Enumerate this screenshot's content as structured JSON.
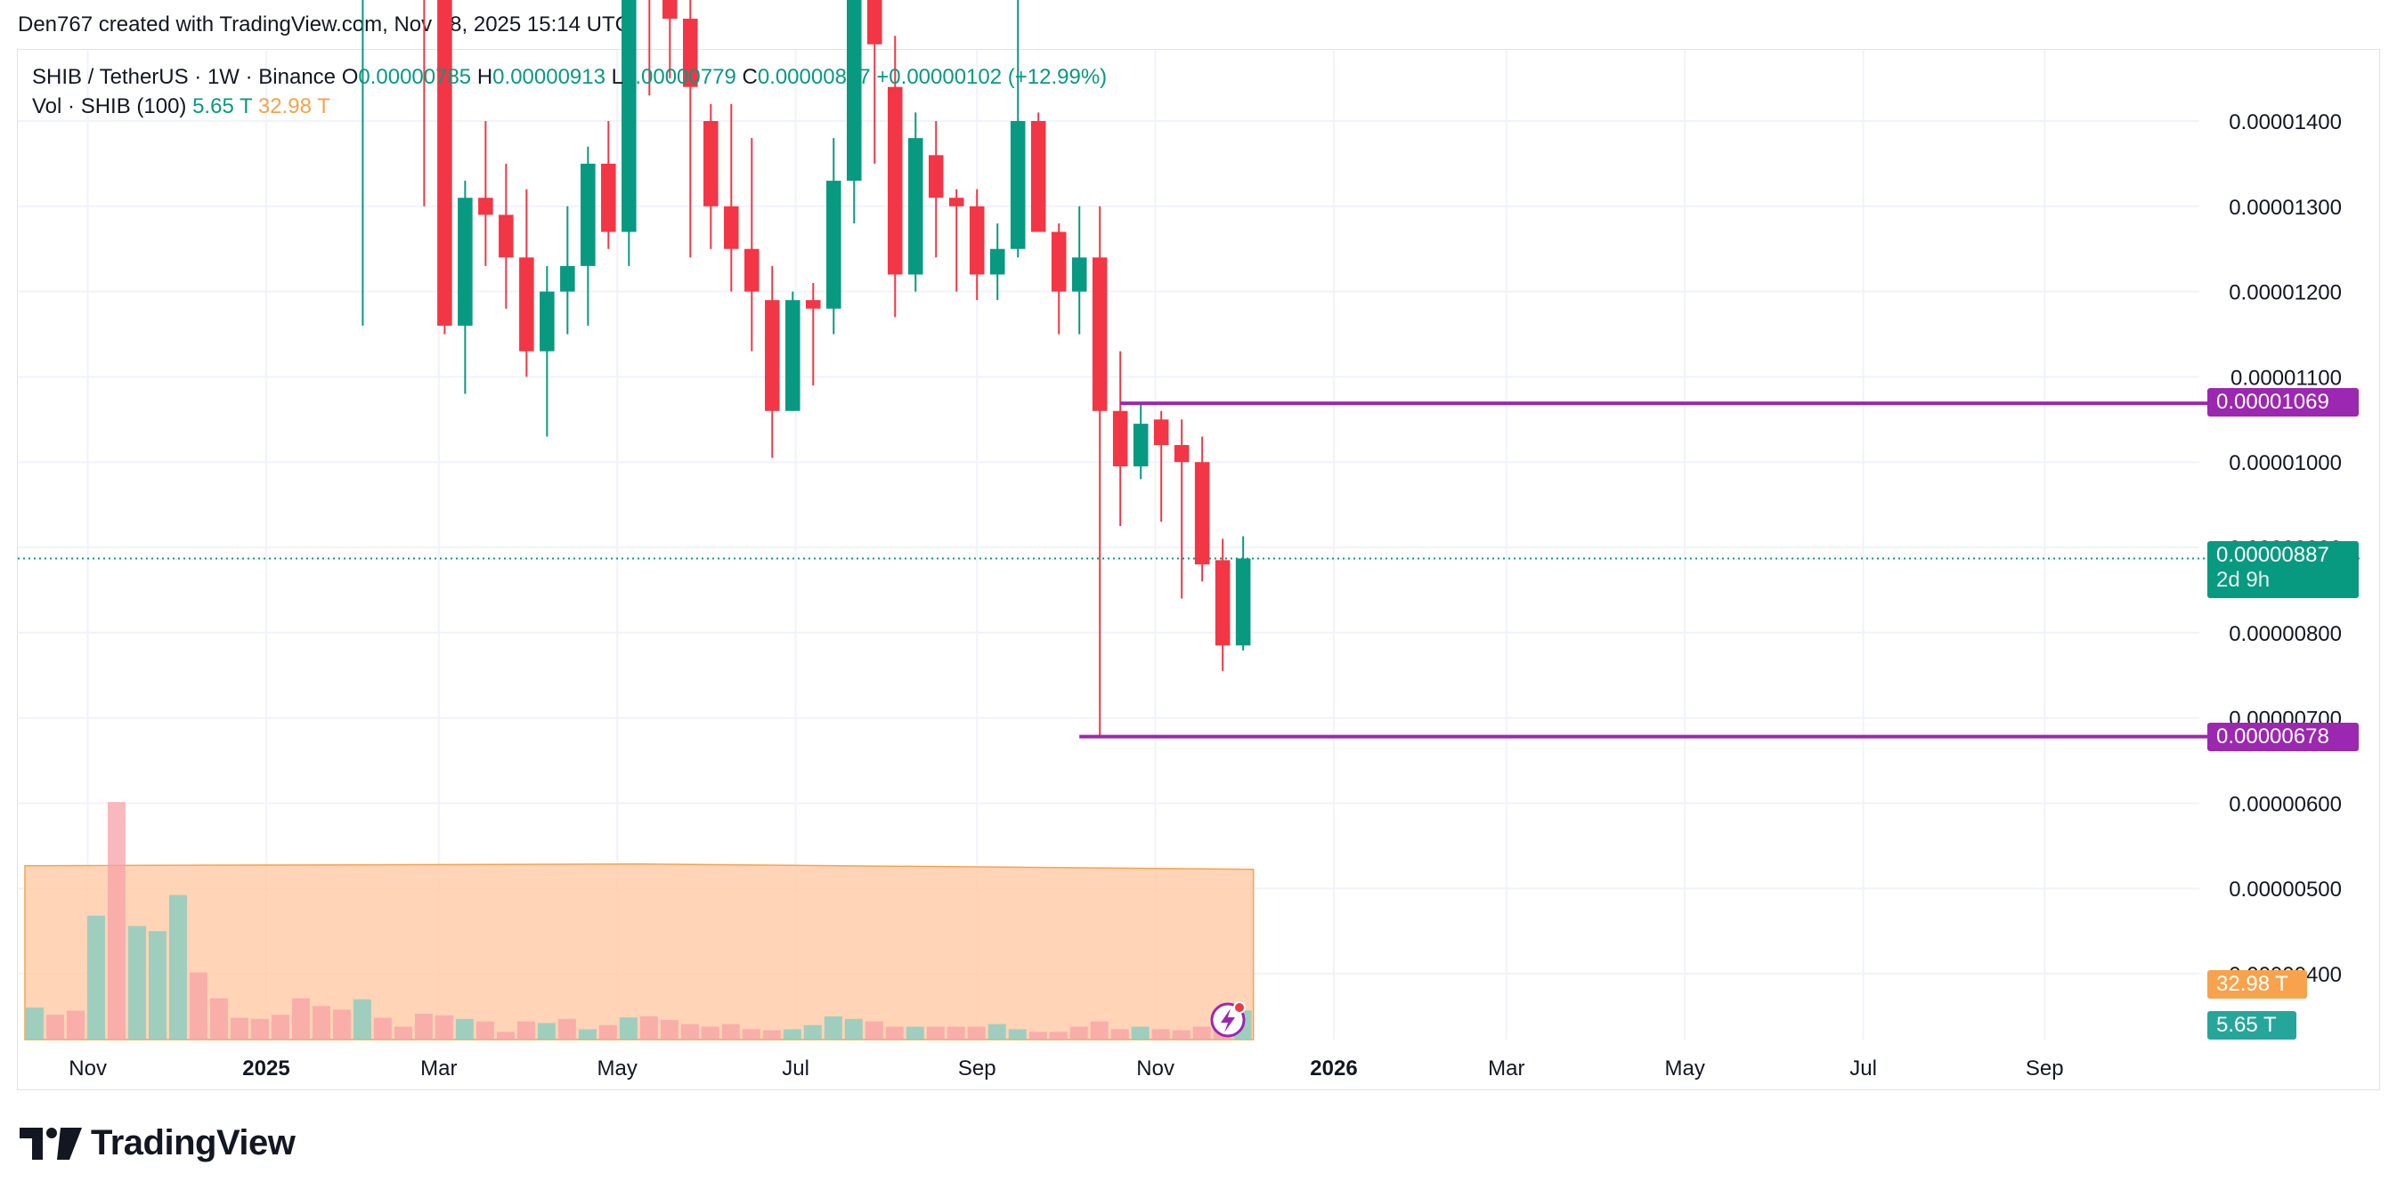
{
  "caption": "Den767 created with TradingView.com, Nov 28, 2025 15:14 UTC",
  "legend": {
    "symbol_line": "SHIB / TetherUS · 1W · Binance",
    "open_label": "O",
    "open_value": "0.00000785",
    "high_label": "H",
    "high_value": "0.00000913",
    "low_label": "L",
    "low_value": "0.00000779",
    "close_label": "C",
    "close_value": "0.00000887",
    "change": "+0.00000102 (+12.99%)",
    "volume_label": "Vol · SHIB (100)",
    "volume_value": "5.65 T",
    "volume_ma_value": "32.98 T"
  },
  "price_tags": {
    "upper_level": "0.00001069",
    "lower_level": "0.00000678",
    "last_price": "0.00000887",
    "countdown": "2d 9h",
    "volume_ma": "32.98 T",
    "volume": "5.65 T"
  },
  "colors": {
    "up": "#089981",
    "down": "#f23645",
    "level_line": "#9c27b0",
    "volume_ma_fill": "#ffccaa",
    "grid": "#f0f3fa"
  },
  "brand": {
    "name": "TradingView",
    "icon": "tradingview-logo-icon"
  },
  "chart_data": {
    "type": "candlestick",
    "timeframe": "1W",
    "y_scale": "linear",
    "y_ticks": [
      "0.00001400",
      "0.00001300",
      "0.00001200",
      "0.00001100",
      "0.00001000",
      "0.00000900",
      "0.00000800",
      "0.00000700",
      "0.00000600",
      "0.00000500",
      "0.00000400"
    ],
    "x_ticks": [
      "Nov",
      "2025",
      "Mar",
      "May",
      "Jul",
      "Sep",
      "Nov",
      "2026",
      "Mar",
      "May",
      "Jul",
      "Sep"
    ],
    "x_tick_dates": [
      "2024-11-01",
      "2025-01-01",
      "2025-03-01",
      "2025-05-01",
      "2025-07-01",
      "2025-09-01",
      "2025-11-01",
      "2026-01-01",
      "2026-03-01",
      "2026-05-01",
      "2026-07-01",
      "2026-09-01"
    ],
    "horizontal_levels": [
      {
        "value": 1.069e-05,
        "start": "2025-10-20"
      },
      {
        "value": 6.78e-06,
        "start": "2025-10-06"
      }
    ],
    "last_price": 8.87e-06,
    "candles": [
      {
        "date": "2025-02-03",
        "open": 1.62e-05,
        "high": 1.72e-05,
        "low": 1.16e-05,
        "close": 1.64e-05
      },
      {
        "date": "2025-02-24",
        "open": 1.6e-05,
        "high": 1.65e-05,
        "low": 1.3e-05,
        "close": 1.57e-05
      },
      {
        "date": "2025-03-03",
        "open": 1.6e-05,
        "high": 1.65e-05,
        "low": 1.15e-05,
        "close": 1.16e-05
      },
      {
        "date": "2025-03-10",
        "open": 1.16e-05,
        "high": 1.33e-05,
        "low": 1.08e-05,
        "close": 1.31e-05
      },
      {
        "date": "2025-03-17",
        "open": 1.31e-05,
        "high": 1.4e-05,
        "low": 1.23e-05,
        "close": 1.29e-05
      },
      {
        "date": "2025-03-24",
        "open": 1.29e-05,
        "high": 1.35e-05,
        "low": 1.18e-05,
        "close": 1.24e-05
      },
      {
        "date": "2025-03-31",
        "open": 1.24e-05,
        "high": 1.32e-05,
        "low": 1.1e-05,
        "close": 1.13e-05
      },
      {
        "date": "2025-04-07",
        "open": 1.13e-05,
        "high": 1.23e-05,
        "low": 1.03e-05,
        "close": 1.2e-05
      },
      {
        "date": "2025-04-14",
        "open": 1.2e-05,
        "high": 1.3e-05,
        "low": 1.15e-05,
        "close": 1.23e-05
      },
      {
        "date": "2025-04-21",
        "open": 1.23e-05,
        "high": 1.37e-05,
        "low": 1.16e-05,
        "close": 1.35e-05
      },
      {
        "date": "2025-04-28",
        "open": 1.35e-05,
        "high": 1.4e-05,
        "low": 1.25e-05,
        "close": 1.27e-05
      },
      {
        "date": "2025-05-05",
        "open": 1.27e-05,
        "high": 1.65e-05,
        "low": 1.23e-05,
        "close": 1.6e-05
      },
      {
        "date": "2025-05-12",
        "open": 1.6e-05,
        "high": 1.7e-05,
        "low": 1.43e-05,
        "close": 1.56e-05
      },
      {
        "date": "2025-05-19",
        "open": 1.56e-05,
        "high": 1.62e-05,
        "low": 1.45e-05,
        "close": 1.52e-05
      },
      {
        "date": "2025-05-26",
        "open": 1.52e-05,
        "high": 1.6e-05,
        "low": 1.24e-05,
        "close": 1.44e-05
      },
      {
        "date": "2025-06-02",
        "open": 1.4e-05,
        "high": 1.42e-05,
        "low": 1.25e-05,
        "close": 1.3e-05
      },
      {
        "date": "2025-06-09",
        "open": 1.3e-05,
        "high": 1.42e-05,
        "low": 1.2e-05,
        "close": 1.25e-05
      },
      {
        "date": "2025-06-16",
        "open": 1.25e-05,
        "high": 1.38e-05,
        "low": 1.13e-05,
        "close": 1.2e-05
      },
      {
        "date": "2025-06-23",
        "open": 1.19e-05,
        "high": 1.23e-05,
        "low": 1.005e-05,
        "close": 1.06e-05
      },
      {
        "date": "2025-06-30",
        "open": 1.06e-05,
        "high": 1.2e-05,
        "low": 1.06e-05,
        "close": 1.19e-05
      },
      {
        "date": "2025-07-07",
        "open": 1.19e-05,
        "high": 1.21e-05,
        "low": 1.09e-05,
        "close": 1.18e-05
      },
      {
        "date": "2025-07-14",
        "open": 1.18e-05,
        "high": 1.38e-05,
        "low": 1.15e-05,
        "close": 1.33e-05
      },
      {
        "date": "2025-07-21",
        "open": 1.33e-05,
        "high": 1.6e-05,
        "low": 1.28e-05,
        "close": 1.57e-05
      },
      {
        "date": "2025-07-28",
        "open": 1.57e-05,
        "high": 1.62e-05,
        "low": 1.35e-05,
        "close": 1.49e-05
      },
      {
        "date": "2025-08-04",
        "open": 1.44e-05,
        "high": 1.5e-05,
        "low": 1.17e-05,
        "close": 1.22e-05
      },
      {
        "date": "2025-08-11",
        "open": 1.22e-05,
        "high": 1.41e-05,
        "low": 1.2e-05,
        "close": 1.38e-05
      },
      {
        "date": "2025-08-18",
        "open": 1.36e-05,
        "high": 1.4e-05,
        "low": 1.24e-05,
        "close": 1.31e-05
      },
      {
        "date": "2025-08-25",
        "open": 1.31e-05,
        "high": 1.32e-05,
        "low": 1.2e-05,
        "close": 1.3e-05
      },
      {
        "date": "2025-09-01",
        "open": 1.3e-05,
        "high": 1.32e-05,
        "low": 1.19e-05,
        "close": 1.22e-05
      },
      {
        "date": "2025-09-08",
        "open": 1.22e-05,
        "high": 1.28e-05,
        "low": 1.19e-05,
        "close": 1.25e-05
      },
      {
        "date": "2025-09-15",
        "open": 1.25e-05,
        "high": 1.6e-05,
        "low": 1.24e-05,
        "close": 1.4e-05
      },
      {
        "date": "2025-09-22",
        "open": 1.4e-05,
        "high": 1.41e-05,
        "low": 1.27e-05,
        "close": 1.27e-05
      },
      {
        "date": "2025-09-29",
        "open": 1.27e-05,
        "high": 1.28e-05,
        "low": 1.15e-05,
        "close": 1.2e-05
      },
      {
        "date": "2025-10-06",
        "open": 1.2e-05,
        "high": 1.3e-05,
        "low": 1.15e-05,
        "close": 1.24e-05
      },
      {
        "date": "2025-10-13",
        "open": 1.24e-05,
        "high": 1.3e-05,
        "low": 6.78e-06,
        "close": 1.06e-05
      },
      {
        "date": "2025-10-20",
        "open": 1.06e-05,
        "high": 1.13e-05,
        "low": 9.25e-06,
        "close": 9.95e-06
      },
      {
        "date": "2025-10-27",
        "open": 9.95e-06,
        "high": 1.069e-05,
        "low": 9.8e-06,
        "close": 1.045e-05
      },
      {
        "date": "2025-11-03",
        "open": 1.05e-05,
        "high": 1.06e-05,
        "low": 9.3e-06,
        "close": 1.02e-05
      },
      {
        "date": "2025-11-10",
        "open": 1.02e-05,
        "high": 1.05e-05,
        "low": 8.4e-06,
        "close": 1e-05
      },
      {
        "date": "2025-11-17",
        "open": 1e-05,
        "high": 1.03e-05,
        "low": 8.6e-06,
        "close": 8.8e-06
      },
      {
        "date": "2025-11-24",
        "open": 8.85e-06,
        "high": 9.1e-06,
        "low": 7.55e-06,
        "close": 7.85e-06
      },
      {
        "date": "2025-12-01",
        "open": 7.85e-06,
        "high": 9.13e-06,
        "low": 7.79e-06,
        "close": 8.87e-06
      }
    ],
    "volume": {
      "unit": "T",
      "bars": [
        {
          "date": "2024-10-14",
          "value": 6.2,
          "up": true
        },
        {
          "date": "2024-10-21",
          "value": 4.8,
          "up": false
        },
        {
          "date": "2024-10-28",
          "value": 5.6,
          "up": false
        },
        {
          "date": "2024-11-04",
          "value": 24.0,
          "up": true
        },
        {
          "date": "2024-11-11",
          "value": 46.0,
          "up": false
        },
        {
          "date": "2024-11-18",
          "value": 22.0,
          "up": true
        },
        {
          "date": "2024-11-25",
          "value": 21.0,
          "up": true
        },
        {
          "date": "2024-12-02",
          "value": 28.0,
          "up": true
        },
        {
          "date": "2024-12-09",
          "value": 13.0,
          "up": false
        },
        {
          "date": "2024-12-16",
          "value": 8.0,
          "up": false
        },
        {
          "date": "2024-12-23",
          "value": 4.2,
          "up": false
        },
        {
          "date": "2024-12-30",
          "value": 4.0,
          "up": false
        },
        {
          "date": "2025-01-06",
          "value": 4.8,
          "up": false
        },
        {
          "date": "2025-01-13",
          "value": 8.0,
          "up": false
        },
        {
          "date": "2025-01-20",
          "value": 6.5,
          "up": false
        },
        {
          "date": "2025-01-27",
          "value": 5.8,
          "up": false
        },
        {
          "date": "2025-02-03",
          "value": 7.8,
          "up": true
        },
        {
          "date": "2025-02-10",
          "value": 4.2,
          "up": false
        },
        {
          "date": "2025-02-17",
          "value": 2.5,
          "up": false
        },
        {
          "date": "2025-02-24",
          "value": 5.0,
          "up": false
        },
        {
          "date": "2025-03-03",
          "value": 4.7,
          "up": false
        },
        {
          "date": "2025-03-10",
          "value": 4.0,
          "up": true
        },
        {
          "date": "2025-03-17",
          "value": 3.5,
          "up": false
        },
        {
          "date": "2025-03-24",
          "value": 1.5,
          "up": false
        },
        {
          "date": "2025-03-31",
          "value": 3.5,
          "up": false
        },
        {
          "date": "2025-04-07",
          "value": 3.2,
          "up": true
        },
        {
          "date": "2025-04-14",
          "value": 4.0,
          "up": false
        },
        {
          "date": "2025-04-21",
          "value": 2.0,
          "up": true
        },
        {
          "date": "2025-04-28",
          "value": 2.8,
          "up": false
        },
        {
          "date": "2025-05-05",
          "value": 4.3,
          "up": true
        },
        {
          "date": "2025-05-12",
          "value": 4.5,
          "up": false
        },
        {
          "date": "2025-05-19",
          "value": 3.8,
          "up": false
        },
        {
          "date": "2025-05-26",
          "value": 3.0,
          "up": false
        },
        {
          "date": "2025-06-02",
          "value": 2.5,
          "up": false
        },
        {
          "date": "2025-06-09",
          "value": 3.0,
          "up": false
        },
        {
          "date": "2025-06-16",
          "value": 2.0,
          "up": false
        },
        {
          "date": "2025-06-23",
          "value": 1.8,
          "up": false
        },
        {
          "date": "2025-06-30",
          "value": 2.0,
          "up": true
        },
        {
          "date": "2025-07-07",
          "value": 2.8,
          "up": true
        },
        {
          "date": "2025-07-14",
          "value": 4.5,
          "up": true
        },
        {
          "date": "2025-07-21",
          "value": 4.0,
          "up": true
        },
        {
          "date": "2025-07-28",
          "value": 3.5,
          "up": false
        },
        {
          "date": "2025-08-04",
          "value": 2.5,
          "up": false
        },
        {
          "date": "2025-08-11",
          "value": 2.5,
          "up": true
        },
        {
          "date": "2025-08-18",
          "value": 2.5,
          "up": false
        },
        {
          "date": "2025-08-25",
          "value": 2.5,
          "up": false
        },
        {
          "date": "2025-09-01",
          "value": 2.5,
          "up": false
        },
        {
          "date": "2025-09-08",
          "value": 3.0,
          "up": true
        },
        {
          "date": "2025-09-15",
          "value": 2.0,
          "up": true
        },
        {
          "date": "2025-09-22",
          "value": 1.5,
          "up": false
        },
        {
          "date": "2025-09-29",
          "value": 1.5,
          "up": false
        },
        {
          "date": "2025-10-06",
          "value": 2.5,
          "up": false
        },
        {
          "date": "2025-10-13",
          "value": 3.5,
          "up": false
        },
        {
          "date": "2025-10-20",
          "value": 2.0,
          "up": false
        },
        {
          "date": "2025-10-27",
          "value": 2.5,
          "up": true
        },
        {
          "date": "2025-11-03",
          "value": 2.0,
          "up": false
        },
        {
          "date": "2025-11-10",
          "value": 1.8,
          "up": false
        },
        {
          "date": "2025-11-17",
          "value": 2.5,
          "up": false
        },
        {
          "date": "2025-11-24",
          "value": 2.0,
          "up": false
        },
        {
          "date": "2025-12-01",
          "value": 5.65,
          "up": true
        }
      ],
      "ma_value": 32.98,
      "ma_end": "2025-12-01"
    }
  }
}
